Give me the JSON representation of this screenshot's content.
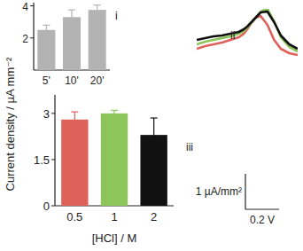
{
  "chart_data": [
    {
      "type": "bar",
      "title": "i",
      "categories": [
        "5'",
        "10'",
        "20'"
      ],
      "values": [
        2.5,
        3.3,
        3.75
      ],
      "errors": [
        0.3,
        0.45,
        0.3
      ],
      "color": "#b3b3b3",
      "ylim": [
        0,
        4.2
      ],
      "yticks": [
        2,
        4
      ]
    },
    {
      "type": "line",
      "title": "ii",
      "tick_labels": false,
      "x": [
        0,
        0.05,
        0.1,
        0.15,
        0.2,
        0.25,
        0.28,
        0.3,
        0.32,
        0.35,
        0.38,
        0.42,
        0.46,
        0.5,
        0.55,
        0.6
      ],
      "xlim": [
        0,
        0.6
      ],
      "ylim": [
        -0.5,
        1.0
      ],
      "series": [
        {
          "color": "#e0605a",
          "values": [
            -0.125,
            -0.05,
            0,
            0.05,
            0.125,
            0.2,
            0.3,
            0.425,
            0.575,
            0.75,
            0.8,
            0.55,
            0.125,
            -0.125,
            -0.25,
            -0.3
          ]
        },
        {
          "color": "#8cc65a",
          "values": [
            0,
            0.075,
            0.125,
            0.175,
            0.225,
            0.3,
            0.375,
            0.475,
            0.575,
            0.75,
            0.925,
            1.0,
            0.65,
            0.2,
            -0.075,
            -0.2
          ]
        },
        {
          "color": "#111111",
          "values": [
            0.125,
            0.175,
            0.225,
            0.25,
            0.3,
            0.35,
            0.425,
            0.5,
            0.6,
            0.75,
            0.9,
            0.925,
            0.625,
            0.25,
            0,
            -0.125
          ]
        }
      ],
      "scale_bar": {
        "x": 0.2,
        "y": 1,
        "x_label": "0.2 V",
        "y_label": "1 µA/mm²"
      }
    },
    {
      "type": "bar",
      "title": "iii",
      "categories": [
        "0.5",
        "1",
        "2"
      ],
      "values": [
        2.8,
        3.0,
        2.3
      ],
      "errors": [
        0.25,
        0.1,
        0.55
      ],
      "colors": [
        "#e0605a",
        "#8cc65a",
        "#111111"
      ],
      "ylim": [
        0,
        3.6
      ],
      "yticks": [
        0,
        1.5,
        3
      ],
      "x_label": "[HCl] / M",
      "y_label": "Current density / µA mm⁻²"
    }
  ]
}
